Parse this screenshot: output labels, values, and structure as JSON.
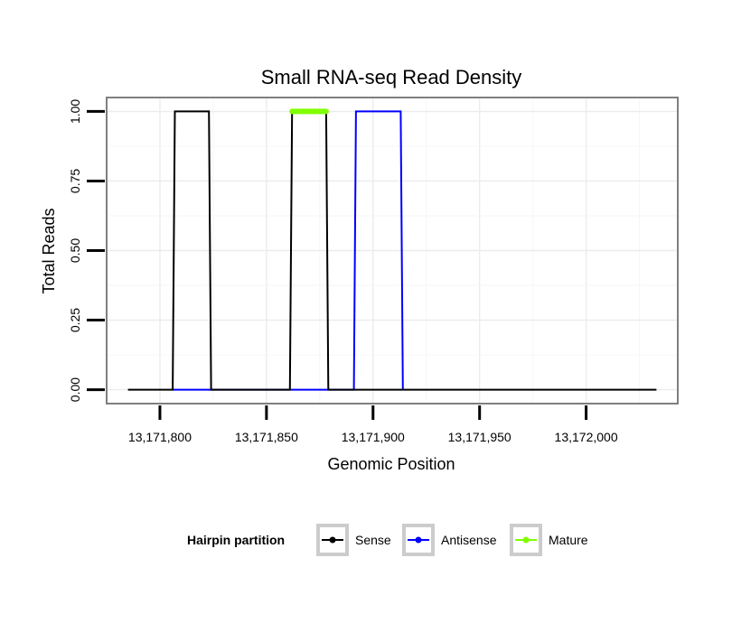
{
  "chart_data": {
    "type": "line",
    "title": "Small RNA-seq Read Density",
    "xlabel": "Genomic Position",
    "ylabel": "Total Reads",
    "xlim": [
      13171775,
      13172043
    ],
    "ylim": [
      -0.05,
      1.05
    ],
    "x_ticks": [
      13171800,
      13171850,
      13171900,
      13171950,
      13172000
    ],
    "x_tick_labels": [
      "13,171,800",
      "13,171,850",
      "13,171,900",
      "13,171,950",
      "13,172,000"
    ],
    "y_ticks": [
      0,
      0.25,
      0.5,
      0.75,
      1
    ],
    "y_tick_labels": [
      "0.00",
      "0.25",
      "0.50",
      "0.75",
      "1.00"
    ],
    "grid": true,
    "legend": {
      "title": "Hairpin partition",
      "position": "bottom",
      "entries": [
        {
          "name": "Sense",
          "color": "#000000"
        },
        {
          "name": "Antisense",
          "color": "#0000ff"
        },
        {
          "name": "Mature",
          "color": "#80ff00"
        }
      ]
    },
    "series": [
      {
        "name": "Sense",
        "color": "#000000",
        "x": [
          13171785,
          13171806,
          13171807,
          13171823,
          13171824,
          13171861,
          13171862,
          13171878,
          13171879,
          13172033
        ],
        "y": [
          0,
          0,
          1,
          1,
          0,
          0,
          1,
          1,
          0,
          0
        ]
      },
      {
        "name": "Antisense",
        "color": "#0000ff",
        "x": [
          13171806,
          13171824,
          13171861,
          13171879,
          13171891,
          13171892,
          13171913,
          13171914
        ],
        "y": [
          0,
          0,
          0,
          0,
          0,
          1,
          1,
          0
        ]
      },
      {
        "name": "Mature",
        "color": "#80ff00",
        "x": [
          13171862,
          13171878
        ],
        "y": [
          1,
          1
        ]
      }
    ]
  }
}
